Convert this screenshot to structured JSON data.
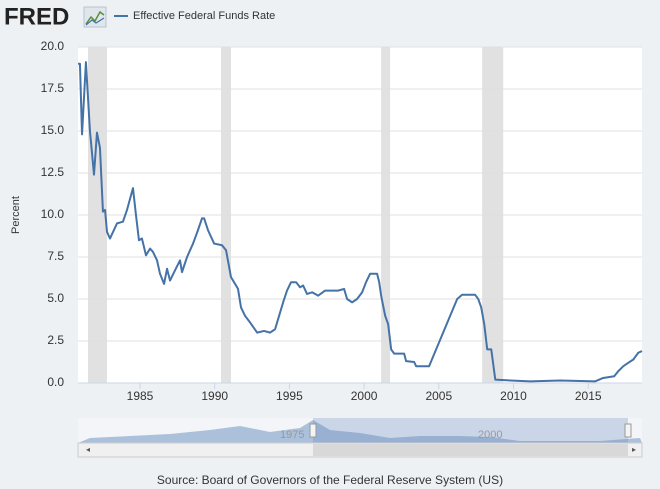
{
  "chart_data": {
    "type": "line",
    "logo": "FRED",
    "y_label": "Percent",
    "source": "Source: Board of Governors of the Federal Reserve System (US)",
    "x": [
      1980.85,
      1980.98,
      1981.12,
      1981.38,
      1981.65,
      1981.92,
      1982.12,
      1982.32,
      1982.52,
      1982.66,
      1982.79,
      1982.99,
      1983.46,
      1983.86,
      1984.13,
      1984.53,
      1984.73,
      1984.93,
      1985.13,
      1985.4,
      1985.67,
      1985.87,
      1986.14,
      1986.34,
      1986.61,
      1986.81,
      1987.01,
      1987.34,
      1987.68,
      1987.81,
      1988.15,
      1988.55,
      1988.88,
      1989.15,
      1989.29,
      1989.55,
      1989.96,
      1990.49,
      1990.76,
      1991.09,
      1991.43,
      1991.56,
      1991.76,
      1992.03,
      1992.37,
      1992.84,
      1993.3,
      1993.71,
      1994.04,
      1994.31,
      1994.58,
      1994.84,
      1995.11,
      1995.45,
      1995.71,
      1995.92,
      1996.18,
      1996.52,
      1996.92,
      1997.39,
      1998.26,
      1998.66,
      1998.86,
      1999.2,
      1999.53,
      1999.87,
      2000.13,
      2000.4,
      2000.87,
      2001.01,
      2001.14,
      2001.41,
      2001.61,
      2001.81,
      2002.01,
      2002.68,
      2002.81,
      2003.35,
      2003.48,
      2004.35,
      2004.82,
      2005.29,
      2005.76,
      2006.23,
      2006.56,
      2007.43,
      2007.64,
      2007.84,
      2008.04,
      2008.24,
      2008.51,
      2008.78,
      2009.78,
      2011.12,
      2013.13,
      2015.47,
      2016.0,
      2016.74,
      2017.01,
      2017.35,
      2017.68,
      2018.02,
      2018.35,
      2018.6
    ],
    "series": [
      {
        "name": "Effective Federal Funds Rate",
        "color": "#4572a7",
        "values": [
          19.0,
          19.0,
          14.8,
          19.1,
          15.0,
          12.4,
          14.9,
          14.0,
          10.2,
          10.3,
          9.0,
          8.6,
          9.5,
          9.6,
          10.3,
          11.6,
          10.0,
          8.5,
          8.6,
          7.6,
          8.0,
          7.8,
          7.3,
          6.5,
          5.9,
          6.8,
          6.1,
          6.7,
          7.3,
          6.6,
          7.5,
          8.3,
          9.1,
          9.8,
          9.8,
          9.1,
          8.3,
          8.2,
          7.9,
          6.3,
          5.8,
          5.6,
          4.5,
          4.0,
          3.6,
          3.0,
          3.1,
          3.0,
          3.2,
          4.0,
          4.8,
          5.5,
          6.0,
          6.0,
          5.7,
          5.8,
          5.3,
          5.4,
          5.2,
          5.5,
          5.5,
          5.6,
          5.0,
          4.8,
          5.0,
          5.4,
          6.0,
          6.5,
          6.5,
          6.0,
          5.2,
          4.0,
          3.5,
          2.0,
          1.75,
          1.75,
          1.3,
          1.25,
          1.0,
          1.0,
          2.0,
          3.0,
          4.0,
          5.0,
          5.25,
          5.25,
          5.0,
          4.5,
          3.5,
          2.0,
          2.0,
          0.2,
          0.15,
          0.1,
          0.15,
          0.1,
          0.3,
          0.4,
          0.7,
          1.0,
          1.2,
          1.4,
          1.8,
          1.9
        ]
      }
    ],
    "recessions": [
      [
        1981.52,
        1982.79
      ],
      [
        1990.42,
        1991.09
      ],
      [
        2001.14,
        2001.74
      ],
      [
        2007.9,
        2009.31
      ]
    ],
    "recession_color": "#e1e1e1",
    "xlim": [
      1980.85,
      2018.6
    ],
    "xticks": [
      1985,
      1990,
      1995,
      2000,
      2005,
      2010,
      2015
    ],
    "ylim": [
      0,
      20
    ],
    "yticks": [
      {
        "value": 0,
        "label": "0.0"
      },
      2.5,
      {
        "value": 5,
        "label": "5.0"
      },
      7.5,
      {
        "value": 10,
        "label": "10.0"
      },
      12.5,
      {
        "value": 15,
        "label": "15.0"
      },
      17.5,
      {
        "value": 20,
        "label": "20.0"
      }
    ],
    "grid": true,
    "navigator_labels": [
      "1975",
      "2000"
    ]
  }
}
